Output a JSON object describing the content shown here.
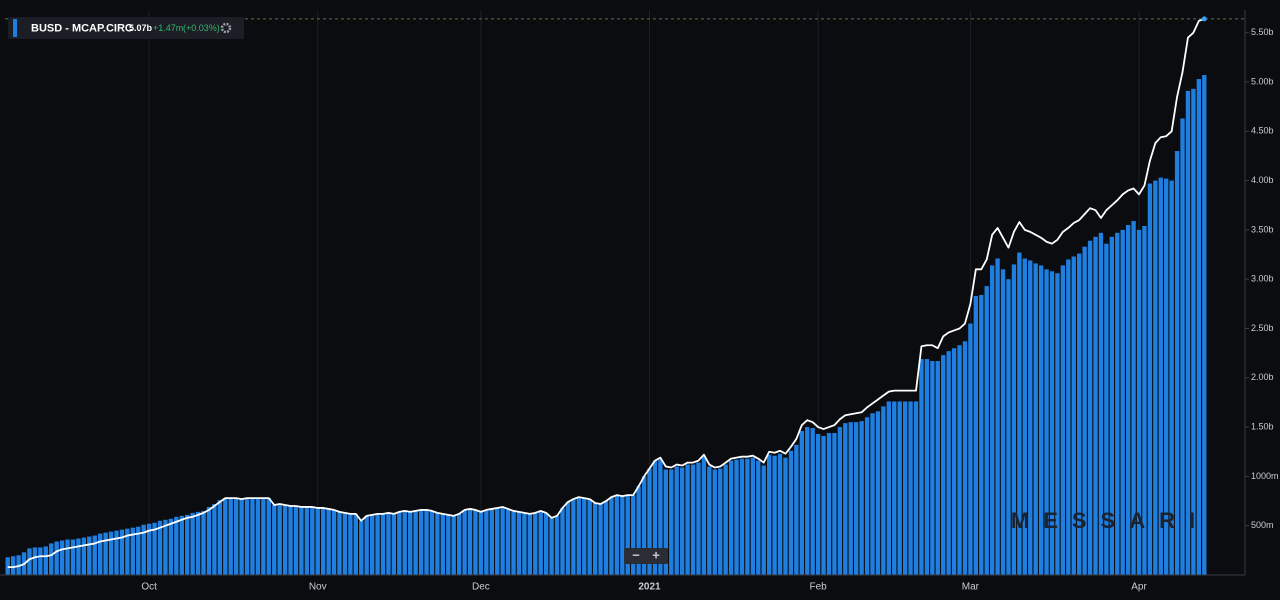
{
  "chart_data": {
    "type": "bar",
    "title": "BUSD - MCAP.CIRC",
    "header": {
      "value": "5.07b",
      "change": "+1.47m",
      "change_pct": "(+0.03%)"
    },
    "watermark": "MESSARI",
    "controls": [
      "−",
      "+"
    ],
    "grid": true,
    "ylim": [
      0,
      5.73
    ],
    "yticks": [
      {
        "value": 0.5,
        "label": "500m"
      },
      {
        "value": 1,
        "label": "1000m"
      },
      {
        "value": 1.5,
        "label": "1.50b"
      },
      {
        "value": 2,
        "label": "2.00b"
      },
      {
        "value": 2.5,
        "label": "2.50b"
      },
      {
        "value": 3,
        "label": "3.00b"
      },
      {
        "value": 3.5,
        "label": "3.50b"
      },
      {
        "value": 4,
        "label": "4.00b"
      },
      {
        "value": 4.5,
        "label": "4.50b"
      },
      {
        "value": 5,
        "label": "5.00b"
      },
      {
        "value": 5.5,
        "label": "5.50b"
      }
    ],
    "xlim": [
      -0.5,
      220.5
    ],
    "xticks": [
      {
        "value": 26,
        "label": "Oct"
      },
      {
        "value": 57,
        "label": "Nov"
      },
      {
        "value": 87,
        "label": "Dec"
      },
      {
        "value": 118,
        "label": "2021"
      },
      {
        "value": 149,
        "label": "Feb"
      },
      {
        "value": 177,
        "label": "Mar"
      },
      {
        "value": 208,
        "label": "Apr"
      }
    ],
    "series": [
      {
        "name": "BUSD - MCAP.CIRC",
        "type": "bar",
        "color": "#1f7fe0",
        "values": [
          0.18,
          0.19,
          0.2,
          0.23,
          0.27,
          0.28,
          0.28,
          0.29,
          0.32,
          0.34,
          0.35,
          0.36,
          0.36,
          0.37,
          0.38,
          0.39,
          0.4,
          0.42,
          0.43,
          0.44,
          0.45,
          0.46,
          0.47,
          0.48,
          0.49,
          0.51,
          0.52,
          0.53,
          0.55,
          0.56,
          0.57,
          0.59,
          0.6,
          0.61,
          0.63,
          0.64,
          0.65,
          0.69,
          0.72,
          0.76,
          0.78,
          0.78,
          0.78,
          0.77,
          0.78,
          0.78,
          0.78,
          0.78,
          0.78,
          0.71,
          0.72,
          0.71,
          0.7,
          0.7,
          0.69,
          0.69,
          0.69,
          0.68,
          0.68,
          0.67,
          0.66,
          0.64,
          0.63,
          0.62,
          0.62,
          0.55,
          0.6,
          0.61,
          0.62,
          0.62,
          0.63,
          0.62,
          0.64,
          0.65,
          0.64,
          0.65,
          0.66,
          0.66,
          0.65,
          0.63,
          0.62,
          0.61,
          0.6,
          0.62,
          0.66,
          0.67,
          0.66,
          0.64,
          0.66,
          0.67,
          0.68,
          0.69,
          0.67,
          0.65,
          0.64,
          0.63,
          0.62,
          0.63,
          0.65,
          0.63,
          0.58,
          0.6,
          0.68,
          0.74,
          0.77,
          0.79,
          0.78,
          0.77,
          0.73,
          0.72,
          0.75,
          0.79,
          0.81,
          0.8,
          0.81,
          0.81,
          0.9,
          1.0,
          1.08,
          1.16,
          1.17,
          1.07,
          1.07,
          1.1,
          1.09,
          1.12,
          1.12,
          1.14,
          1.2,
          1.1,
          1.07,
          1.08,
          1.12,
          1.16,
          1.17,
          1.18,
          1.18,
          1.19,
          1.16,
          1.11,
          1.22,
          1.21,
          1.23,
          1.19,
          1.26,
          1.32,
          1.46,
          1.5,
          1.49,
          1.43,
          1.41,
          1.44,
          1.44,
          1.5,
          1.54,
          1.55,
          1.55,
          1.56,
          1.6,
          1.64,
          1.66,
          1.71,
          1.76,
          1.76,
          1.76,
          1.76,
          1.76,
          1.76,
          2.19,
          2.19,
          2.17,
          2.17,
          2.23,
          2.27,
          2.3,
          2.33,
          2.37,
          2.55,
          2.83,
          2.84,
          2.93,
          3.14,
          3.21,
          3.1,
          3.0,
          3.15,
          3.27,
          3.21,
          3.19,
          3.16,
          3.14,
          3.1,
          3.08,
          3.06,
          3.14,
          3.2,
          3.23,
          3.26,
          3.33,
          3.39,
          3.43,
          3.47,
          3.36,
          3.43,
          3.47,
          3.5,
          3.55,
          3.59,
          3.5,
          3.54,
          3.97,
          4.0,
          4.03,
          4.02,
          4.0,
          4.3,
          4.63,
          4.91,
          4.93,
          5.03,
          5.07
        ]
      },
      {
        "type": "line",
        "color": "#ffffff",
        "values": [
          0.08,
          0.08,
          0.09,
          0.11,
          0.16,
          0.18,
          0.19,
          0.19,
          0.2,
          0.24,
          0.26,
          0.27,
          0.28,
          0.29,
          0.3,
          0.31,
          0.32,
          0.34,
          0.35,
          0.36,
          0.37,
          0.38,
          0.4,
          0.41,
          0.42,
          0.43,
          0.45,
          0.46,
          0.48,
          0.5,
          0.52,
          0.54,
          0.56,
          0.58,
          0.59,
          0.61,
          0.63,
          0.66,
          0.7,
          0.74,
          0.78,
          0.78,
          0.78,
          0.77,
          0.78,
          0.78,
          0.78,
          0.78,
          0.78,
          0.71,
          0.72,
          0.71,
          0.7,
          0.7,
          0.69,
          0.69,
          0.69,
          0.68,
          0.68,
          0.67,
          0.66,
          0.64,
          0.63,
          0.62,
          0.62,
          0.55,
          0.6,
          0.61,
          0.62,
          0.62,
          0.63,
          0.62,
          0.64,
          0.65,
          0.64,
          0.65,
          0.66,
          0.66,
          0.65,
          0.63,
          0.62,
          0.61,
          0.6,
          0.62,
          0.66,
          0.67,
          0.66,
          0.64,
          0.66,
          0.67,
          0.68,
          0.69,
          0.67,
          0.65,
          0.64,
          0.63,
          0.62,
          0.63,
          0.65,
          0.63,
          0.58,
          0.6,
          0.68,
          0.74,
          0.77,
          0.79,
          0.78,
          0.77,
          0.73,
          0.72,
          0.75,
          0.79,
          0.81,
          0.8,
          0.81,
          0.81,
          0.9,
          1.0,
          1.08,
          1.16,
          1.19,
          1.1,
          1.09,
          1.12,
          1.11,
          1.14,
          1.14,
          1.16,
          1.22,
          1.12,
          1.09,
          1.1,
          1.14,
          1.18,
          1.19,
          1.2,
          1.2,
          1.21,
          1.18,
          1.14,
          1.25,
          1.24,
          1.26,
          1.23,
          1.3,
          1.38,
          1.52,
          1.57,
          1.55,
          1.5,
          1.48,
          1.5,
          1.52,
          1.58,
          1.62,
          1.63,
          1.64,
          1.65,
          1.7,
          1.74,
          1.78,
          1.82,
          1.86,
          1.87,
          1.87,
          1.87,
          1.87,
          1.87,
          2.32,
          2.33,
          2.33,
          2.3,
          2.42,
          2.46,
          2.48,
          2.5,
          2.55,
          2.75,
          3.1,
          3.1,
          3.2,
          3.45,
          3.52,
          3.42,
          3.32,
          3.48,
          3.58,
          3.5,
          3.48,
          3.45,
          3.42,
          3.38,
          3.36,
          3.4,
          3.48,
          3.52,
          3.57,
          3.6,
          3.66,
          3.72,
          3.7,
          3.62,
          3.7,
          3.75,
          3.8,
          3.86,
          3.9,
          3.92,
          3.86,
          3.95,
          4.2,
          4.38,
          4.44,
          4.45,
          4.5,
          4.85,
          5.1,
          5.45,
          5.5,
          5.62,
          5.64
        ]
      }
    ]
  }
}
